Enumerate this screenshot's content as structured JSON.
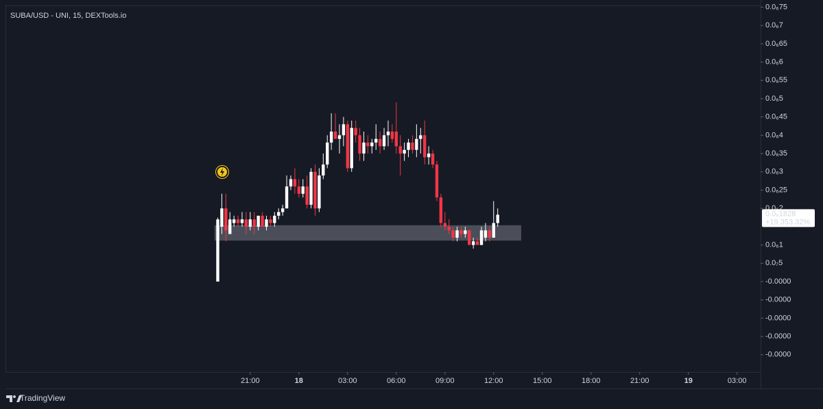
{
  "chart_data": {
    "type": "candlestick",
    "title": "SUBA/USD - UNI, 15, DEXTools.io",
    "up_color": "#ffffff",
    "down_color": "#f23645",
    "x": [
      19,
      19.25,
      19.5,
      19.75,
      20,
      20.25,
      20.5,
      20.75,
      21,
      21.25,
      21.5,
      21.75,
      22,
      22.25,
      22.5,
      22.75,
      23,
      23.25,
      23.5,
      23.75,
      24,
      24.25,
      24.5,
      24.75,
      25,
      25.25,
      25.5,
      25.75,
      26,
      26.25,
      26.5,
      26.75,
      27,
      27.25,
      27.5,
      27.75,
      28,
      28.25,
      28.5,
      28.75,
      29,
      29.25,
      29.5,
      29.75,
      30,
      30.25,
      30.5,
      30.75,
      31,
      31.25,
      31.5,
      31.75,
      32,
      32.25,
      32.5,
      32.75,
      33,
      33.25,
      33.5,
      33.75,
      34,
      34.25,
      34.5,
      34.75,
      35,
      35.25,
      35.5,
      35.75,
      36,
      36.25
    ],
    "open": [
      0,
      1.5e-07,
      2e-07,
      1.3e-07,
      1.6e-07,
      1.7e-07,
      1.6e-07,
      1.7e-07,
      1.5e-07,
      1.7e-07,
      1.5e-07,
      1.8e-07,
      1.5e-07,
      1.7e-07,
      1.6e-07,
      1.8e-07,
      1.9e-07,
      2e-07,
      2.6e-07,
      2.8e-07,
      2.6e-07,
      2.4e-07,
      2.6e-07,
      2.1e-07,
      3e-07,
      2e-07,
      2.9e-07,
      3.2e-07,
      3.8e-07,
      4.1e-07,
      3.9e-07,
      4e-07,
      4.3e-07,
      3.1e-07,
      4.2e-07,
      4e-07,
      3.5e-07,
      3.8e-07,
      3.7e-07,
      3.8e-07,
      3.9e-07,
      3.7e-07,
      4e-07,
      4.1e-07,
      4.1e-07,
      3.7e-07,
      3.5e-07,
      3.6e-07,
      3.8e-07,
      3.6e-07,
      3.9e-07,
      4e-07,
      3.4e-07,
      3.5e-07,
      3.2e-07,
      2.3e-07,
      1.6e-07,
      1.5e-07,
      1.4e-07,
      1.2e-07,
      1.4e-07,
      1.3e-07,
      1.4e-07,
      1e-07,
      1.1e-07,
      1e-07,
      1.2e-07,
      1.4e-07,
      1.2e-07,
      1.6e-07
    ],
    "high": [
      1.75e-07,
      2.4e-07,
      2.4e-07,
      1.9e-07,
      1.8e-07,
      1.8e-07,
      1.9e-07,
      1.9e-07,
      1.9e-07,
      1.9e-07,
      1.8e-07,
      1.9e-07,
      1.8e-07,
      1.8e-07,
      1.9e-07,
      2e-07,
      2.1e-07,
      2.9e-07,
      2.9e-07,
      3.1e-07,
      2.8e-07,
      2.8e-07,
      2.9e-07,
      3.1e-07,
      3.2e-07,
      3.1e-07,
      3.5e-07,
      4e-07,
      4.6e-07,
      4.6e-07,
      4.3e-07,
      4.5e-07,
      4.4e-07,
      4.4e-07,
      4.4e-07,
      4.2e-07,
      4.1e-07,
      4e-07,
      3.9e-07,
      4.3e-07,
      4.1e-07,
      4.2e-07,
      4.4e-07,
      4.3e-07,
      4.9e-07,
      4e-07,
      3.8e-07,
      3.9e-07,
      4e-07,
      4.3e-07,
      4.2e-07,
      4.4e-07,
      3.7e-07,
      3.6e-07,
      3.3e-07,
      2.4e-07,
      1.9e-07,
      1.7e-07,
      1.5e-07,
      1.5e-07,
      1.5e-07,
      1.5e-07,
      1.4e-07,
      1.2e-07,
      1.2e-07,
      1.5e-07,
      1.6e-07,
      1.5e-07,
      2.2e-07,
      2e-07
    ],
    "low": [
      0,
      1.3e-07,
      1.1e-07,
      1.3e-07,
      1.5e-07,
      1.5e-07,
      1.5e-07,
      1.3e-07,
      1.4e-07,
      1.3e-07,
      1.4e-07,
      1.5e-07,
      1.4e-07,
      1.5e-07,
      1.5e-07,
      1.7e-07,
      1.8e-07,
      2e-07,
      2.5e-07,
      2.4e-07,
      2.3e-07,
      2.3e-07,
      2e-07,
      2e-07,
      1.8e-07,
      1.9e-07,
      2.8e-07,
      3.1e-07,
      3.6e-07,
      3.9e-07,
      3.5e-07,
      3.7e-07,
      3e-07,
      3e-07,
      3.8e-07,
      3.3e-07,
      3.3e-07,
      3.5e-07,
      3.5e-07,
      3.6e-07,
      3.5e-07,
      3.6e-07,
      3.7e-07,
      3.8e-07,
      3.5e-07,
      2.9e-07,
      3.3e-07,
      3.4e-07,
      3.5e-07,
      3.4e-07,
      3.5e-07,
      3.2e-07,
      3.2e-07,
      3.1e-07,
      2.2e-07,
      1.5e-07,
      1.4e-07,
      1.3e-07,
      1.1e-07,
      1.1e-07,
      1.2e-07,
      1.2e-07,
      1e-07,
      9e-08,
      1e-07,
      1e-07,
      1.1e-07,
      1.1e-07,
      1.2e-07,
      1.5e-07
    ],
    "close": [
      1.7e-07,
      2e-07,
      1.4e-07,
      1.7e-07,
      1.7e-07,
      1.6e-07,
      1.7e-07,
      1.5e-07,
      1.7e-07,
      1.5e-07,
      1.8e-07,
      1.5e-07,
      1.7e-07,
      1.6e-07,
      1.8e-07,
      1.9e-07,
      2e-07,
      2.6e-07,
      2.8e-07,
      2.6e-07,
      2.4e-07,
      2.6e-07,
      2.1e-07,
      3e-07,
      2e-07,
      2.9e-07,
      3.2e-07,
      3.8e-07,
      4.1e-07,
      3.9e-07,
      4e-07,
      4.3e-07,
      3.1e-07,
      4.2e-07,
      4e-07,
      3.5e-07,
      3.8e-07,
      3.7e-07,
      3.8e-07,
      3.9e-07,
      3.7e-07,
      4e-07,
      4.1e-07,
      3.9e-07,
      3.7e-07,
      3.5e-07,
      3.6e-07,
      3.8e-07,
      3.6e-07,
      3.9e-07,
      4e-07,
      3.4e-07,
      3.5e-07,
      3.2e-07,
      2.3e-07,
      1.6e-07,
      1.5e-07,
      1.4e-07,
      1.2e-07,
      1.4e-07,
      1.3e-07,
      1.4e-07,
      1e-07,
      1.1e-07,
      1e-07,
      1.4e-07,
      1.4e-07,
      1.2e-07,
      1.6e-07,
      1.828e-07
    ],
    "xlim": [
      5.92,
      52.45
    ],
    "xticks": [
      {
        "value": 21,
        "label": "21:00"
      },
      {
        "value": 24,
        "label": "18"
      },
      {
        "value": 27,
        "label": "03:00"
      },
      {
        "value": 30,
        "label": "06:00"
      },
      {
        "value": 33,
        "label": "09:00"
      },
      {
        "value": 36,
        "label": "12:00"
      },
      {
        "value": 39,
        "label": "15:00"
      },
      {
        "value": 42,
        "label": "18:00"
      },
      {
        "value": 45,
        "label": "21:00"
      },
      {
        "value": 48,
        "label": "19"
      },
      {
        "value": 51,
        "label": "03:00"
      }
    ],
    "ylim": [
      -2.472e-07,
      7.547e-07
    ],
    "yticks": [
      {
        "value": 7.5e-07,
        "label": "0.0₆75"
      },
      {
        "value": 7e-07,
        "label": "0.0₆7"
      },
      {
        "value": 6.5e-07,
        "label": "0.0₆65"
      },
      {
        "value": 6e-07,
        "label": "0.0₆6"
      },
      {
        "value": 5.5e-07,
        "label": "0.0₆55"
      },
      {
        "value": 5e-07,
        "label": "0.0₆5"
      },
      {
        "value": 4.5e-07,
        "label": "0.0₆45"
      },
      {
        "value": 4e-07,
        "label": "0.0₆4"
      },
      {
        "value": 3.5e-07,
        "label": "0.0₆35"
      },
      {
        "value": 3e-07,
        "label": "0.0₆3"
      },
      {
        "value": 2.5e-07,
        "label": "0.0₆25"
      },
      {
        "value": 2e-07,
        "label": "0.0₆2"
      },
      {
        "value": 1e-07,
        "label": "0.0₆1"
      },
      {
        "value": 5e-08,
        "label": "0.0₇5"
      },
      {
        "value": 0,
        "label": "-0.0000"
      },
      {
        "value": -5e-08,
        "label": "-0.0000"
      },
      {
        "value": -1e-07,
        "label": "-0.0000"
      },
      {
        "value": -1.5e-07,
        "label": "-0.0000"
      },
      {
        "value": -2e-07,
        "label": "-0.0000"
      }
    ],
    "zone": {
      "x": [
        18.8,
        37.7
      ],
      "y": [
        1.12e-07,
        1.54e-07
      ],
      "color": "#5d606b"
    },
    "last_price": {
      "value": 1.828e-07,
      "label": "0.0₆1828"
    },
    "change": {
      "value": 19353.32,
      "label": "+19,353.32%"
    },
    "footer": "TradingView"
  }
}
